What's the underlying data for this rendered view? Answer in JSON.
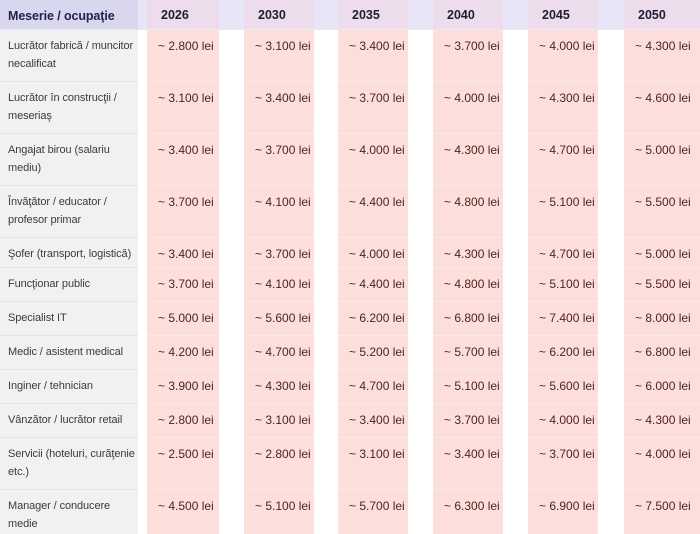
{
  "table": {
    "header": {
      "occupation_label": "Meserie / ocupaţie",
      "years": [
        "2026",
        "2030",
        "2035",
        "2040",
        "2045",
        "2050"
      ]
    },
    "rows": [
      {
        "occupation": "Lucrător fabrică / muncitor\nnecalificat",
        "values": [
          "~ 2.800 lei",
          "~ 3.100 lei",
          "~ 3.400 lei",
          "~ 3.700 lei",
          "~ 4.000 lei",
          "~ 4.300 lei"
        ]
      },
      {
        "occupation": "Lucrător în construcţii /\nmeseriaş",
        "values": [
          "~ 3.100 lei",
          "~ 3.400 lei",
          "~ 3.700 lei",
          "~ 4.000 lei",
          "~ 4.300 lei",
          "~ 4.600 lei"
        ]
      },
      {
        "occupation": "Angajat birou (salariu\nmediu)",
        "values": [
          "~ 3.400 lei",
          "~ 3.700 lei",
          "~ 4.000 lei",
          "~ 4.300 lei",
          "~ 4.700 lei",
          "~ 5.000 lei"
        ]
      },
      {
        "occupation": "Învăţător / educator /\nprofesor primar",
        "values": [
          "~ 3.700 lei",
          "~ 4.100 lei",
          "~ 4.400 lei",
          "~ 4.800 lei",
          "~ 5.100 lei",
          "~ 5.500 lei"
        ]
      },
      {
        "occupation": "Şofer (transport, logistică)",
        "values": [
          "~ 3.400 lei",
          "~ 3.700 lei",
          "~ 4.000 lei",
          "~ 4.300 lei",
          "~ 4.700 lei",
          "~ 5.000 lei"
        ]
      },
      {
        "occupation": "Funcţionar public",
        "values": [
          "~ 3.700 lei",
          "~ 4.100 lei",
          "~ 4.400 lei",
          "~ 4.800 lei",
          "~ 5.100 lei",
          "~ 5.500 lei"
        ]
      },
      {
        "occupation": "Specialist IT",
        "values": [
          "~ 5.000 lei",
          "~ 5.600 lei",
          "~ 6.200 lei",
          "~ 6.800 lei",
          "~ 7.400 lei",
          "~ 8.000 lei"
        ]
      },
      {
        "occupation": "Medic / asistent medical",
        "values": [
          "~ 4.200 lei",
          "~ 4.700 lei",
          "~ 5.200 lei",
          "~ 5.700 lei",
          "~ 6.200 lei",
          "~ 6.800 lei"
        ]
      },
      {
        "occupation": "Inginer / tehnician",
        "values": [
          "~ 3.900 lei",
          "~ 4.300 lei",
          "~ 4.700 lei",
          "~ 5.100 lei",
          "~ 5.600 lei",
          "~ 6.000 lei"
        ]
      },
      {
        "occupation": "Vânzător / lucrător retail",
        "values": [
          "~ 2.800 lei",
          "~ 3.100 lei",
          "~ 3.400 lei",
          "~ 3.700 lei",
          "~ 4.000 lei",
          "~ 4.300 lei"
        ]
      },
      {
        "occupation": "Servicii (hoteluri, curăţenie\netc.)",
        "values": [
          "~ 2.500 lei",
          "~ 2.800 lei",
          "~ 3.100 lei",
          "~ 3.400 lei",
          "~ 3.700 lei",
          "~ 4.000 lei"
        ]
      },
      {
        "occupation": "Manager / conducere\nmedie",
        "values": [
          "~ 4.500 lei",
          "~ 5.100 lei",
          "~ 5.700 lei",
          "~ 6.300 lei",
          "~ 6.900 lei",
          "~ 7.500 lei"
        ]
      }
    ]
  },
  "colors": {
    "header_bg": "#d9d7ee",
    "header_year_band_bg": "#ecdcec",
    "header_text": "#23224e",
    "occupation_col_bg": "#f2f1f1",
    "occupation_text": "#3b3b3b",
    "value_band_bg": "#fcdedb",
    "value_text": "#4f241f",
    "gutter_bg": "#ffffff"
  }
}
